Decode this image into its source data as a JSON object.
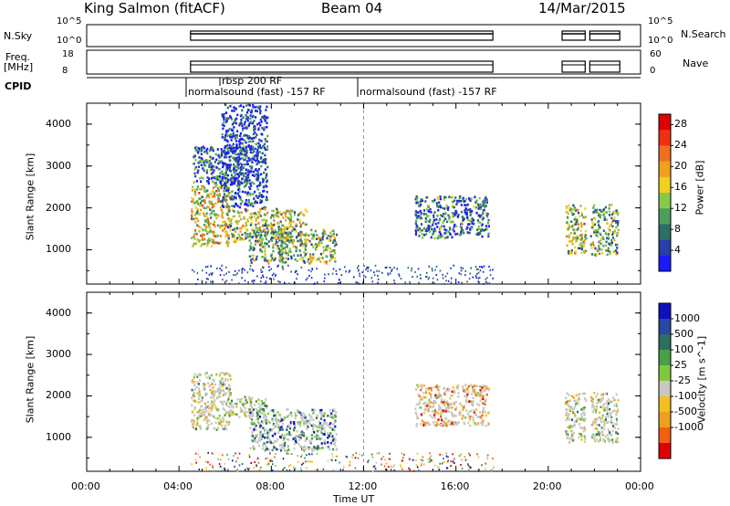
{
  "header": {
    "station": "King Salmon (fitACF)",
    "beam": "Beam 04",
    "date": "14/Mar/2015"
  },
  "top_panels": {
    "nsky_label": "N.Sky",
    "nsky_ticks": [
      "10^5",
      "10^0"
    ],
    "nsearch_label": "N.Search",
    "nsearch_ticks": [
      "10^5",
      "10^0"
    ],
    "freq_label": "Freq.",
    "freq_unit": "[MHz]",
    "freq_ticks": [
      "18",
      "8"
    ],
    "nave_label": "Nave",
    "nave_ticks": [
      "60",
      "0"
    ],
    "cpid_label": "CPID",
    "cpid_entries": [
      "rbsp 200 RF",
      "normalsound (fast) -157 RF",
      "normalsound (fast) -157 RF"
    ]
  },
  "chart_data": [
    {
      "type": "heatmap",
      "title": "",
      "ylabel": "Slant Range [km]",
      "xlabel": "",
      "ylim": [
        180,
        4500
      ],
      "xlim": [
        "00:00",
        "24:00"
      ],
      "yticks": [
        "1000",
        "2000",
        "3000",
        "4000"
      ],
      "colorbar": {
        "label": "Power [dB]",
        "ticks": [
          "4",
          "8",
          "12",
          "16",
          "20",
          "24",
          "28"
        ],
        "colors": [
          "#1a1aff",
          "#2840a8",
          "#2e6e64",
          "#4aa05a",
          "#88c84a",
          "#f0d020",
          "#f0a020",
          "#f07020",
          "#f03010",
          "#e00000"
        ],
        "range": [
          0,
          30
        ]
      },
      "regions": [
        {
          "t0": 4.5,
          "t1": 6.2,
          "r0": 1100,
          "r1": 2600,
          "level": 0.55
        },
        {
          "t0": 4.6,
          "t1": 7.0,
          "r0": 2600,
          "r1": 3500,
          "level": 0.2
        },
        {
          "t0": 5.8,
          "t1": 7.8,
          "r0": 2000,
          "r1": 4500,
          "level": 0.12
        },
        {
          "t0": 6.0,
          "t1": 9.5,
          "r0": 1200,
          "r1": 2000,
          "level": 0.45
        },
        {
          "t0": 7.0,
          "t1": 10.8,
          "r0": 700,
          "r1": 1500,
          "level": 0.4
        },
        {
          "t0": 14.2,
          "t1": 17.4,
          "r0": 1300,
          "r1": 2300,
          "level": 0.25
        },
        {
          "t0": 20.7,
          "t1": 21.6,
          "r0": 900,
          "r1": 2100,
          "level": 0.45
        },
        {
          "t0": 21.8,
          "t1": 23.0,
          "r0": 900,
          "r1": 2100,
          "level": 0.4
        }
      ]
    },
    {
      "type": "heatmap",
      "title": "",
      "ylabel": "Slant Range [km]",
      "xlabel": "Time UT",
      "ylim": [
        180,
        4500
      ],
      "xlim": [
        "00:00",
        "24:00"
      ],
      "yticks": [
        "1000",
        "2000",
        "3000",
        "4000"
      ],
      "xticks": [
        "00:00",
        "04:00",
        "08:00",
        "12:00",
        "16:00",
        "20:00",
        "00:00"
      ],
      "colorbar": {
        "label": "Velocity [m s^-1]",
        "ticks": [
          "1000",
          "500",
          "100",
          "25",
          "-25",
          "-100",
          "-500",
          "-1000"
        ],
        "colors": [
          "#1010c0",
          "#2848a8",
          "#2e7060",
          "#4aa048",
          "#80c840",
          "#c8c8c0",
          "#f0c020",
          "#f0a020",
          "#f06010",
          "#e00000"
        ],
        "range": [
          -1000,
          1000
        ]
      },
      "regions": [
        {
          "t0": 4.5,
          "t1": 6.2,
          "r0": 1200,
          "r1": 2600,
          "level": 0.5
        },
        {
          "t0": 6.2,
          "t1": 7.8,
          "r0": 1500,
          "r1": 2000,
          "level": 0.5
        },
        {
          "t0": 7.0,
          "t1": 10.8,
          "r0": 700,
          "r1": 1700,
          "level": 0.75
        },
        {
          "t0": 14.2,
          "t1": 17.4,
          "r0": 1300,
          "r1": 2300,
          "level": 0.3
        },
        {
          "t0": 20.7,
          "t1": 21.6,
          "r0": 900,
          "r1": 2100,
          "level": 0.5
        },
        {
          "t0": 21.8,
          "t1": 23.0,
          "r0": 900,
          "r1": 2100,
          "level": 0.5
        }
      ]
    }
  ]
}
